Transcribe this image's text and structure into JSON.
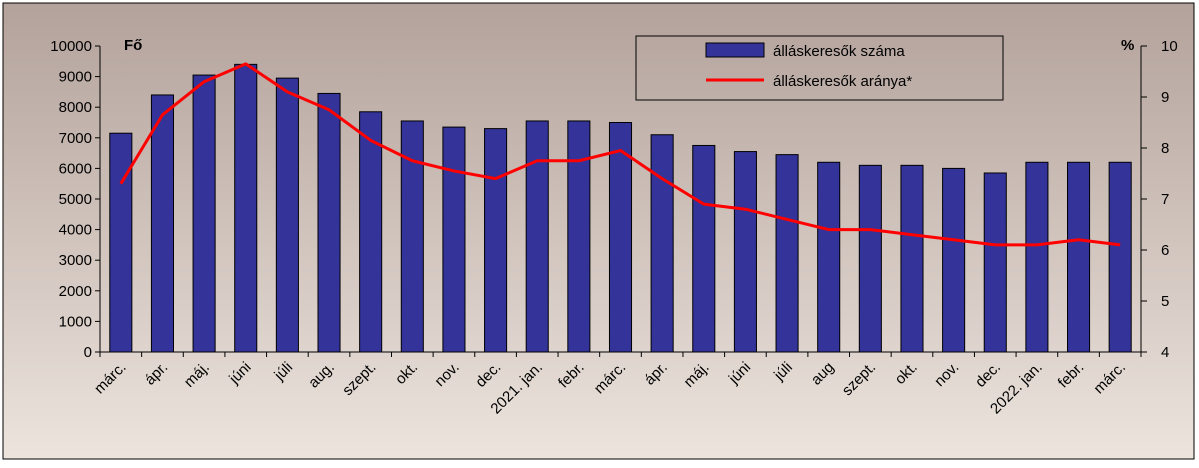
{
  "chart_data": {
    "type": "bar+line",
    "y_left_label": "Fő",
    "y_right_label": "%",
    "y_left_range": [
      0,
      10000
    ],
    "y_left_ticks": [
      "0",
      "1000",
      "2000",
      "3000",
      "4000",
      "5000",
      "6000",
      "7000",
      "8000",
      "9000",
      "10000"
    ],
    "y_right_range": [
      4,
      10
    ],
    "y_right_ticks": [
      "4",
      "5",
      "6",
      "7",
      "8",
      "9",
      "10"
    ],
    "categories": [
      "márc.",
      "ápr.",
      "máj.",
      "júni",
      "júli",
      "aug.",
      "szept.",
      "okt.",
      "nov.",
      "dec.",
      "2021. jan.",
      "febr.",
      "márc.",
      "ápr.",
      "máj.",
      "júni",
      "júli",
      "aug",
      "szept.",
      "okt.",
      "nov.",
      "dec.",
      "2022. jan.",
      "febr.",
      "márc."
    ],
    "series": [
      {
        "name": "álláskeresők száma",
        "type": "bar",
        "axis": "left",
        "color": "#333399",
        "values": [
          7150,
          8400,
          9050,
          9400,
          8950,
          8450,
          7850,
          7550,
          7350,
          7300,
          7550,
          7550,
          7500,
          7100,
          6750,
          6550,
          6450,
          6200,
          6100,
          6100,
          6000,
          5850,
          6200,
          6200,
          6200
        ]
      },
      {
        "name": "álláskeresők aránya*",
        "type": "line",
        "axis": "right",
        "color": "#ff0000",
        "values": [
          7.3,
          8.65,
          9.3,
          9.65,
          9.1,
          8.75,
          8.15,
          7.75,
          7.55,
          7.4,
          7.75,
          7.75,
          7.95,
          7.4,
          6.9,
          6.8,
          6.6,
          6.4,
          6.4,
          6.3,
          6.2,
          6.1,
          6.1,
          6.2,
          6.1
        ]
      }
    ],
    "grid": false,
    "legend_position": "top-right",
    "colors": {
      "background_gradient": [
        "#b3a29b",
        "#ece4dd"
      ],
      "bar_fill": "#333399",
      "line": "#ff0000"
    }
  }
}
